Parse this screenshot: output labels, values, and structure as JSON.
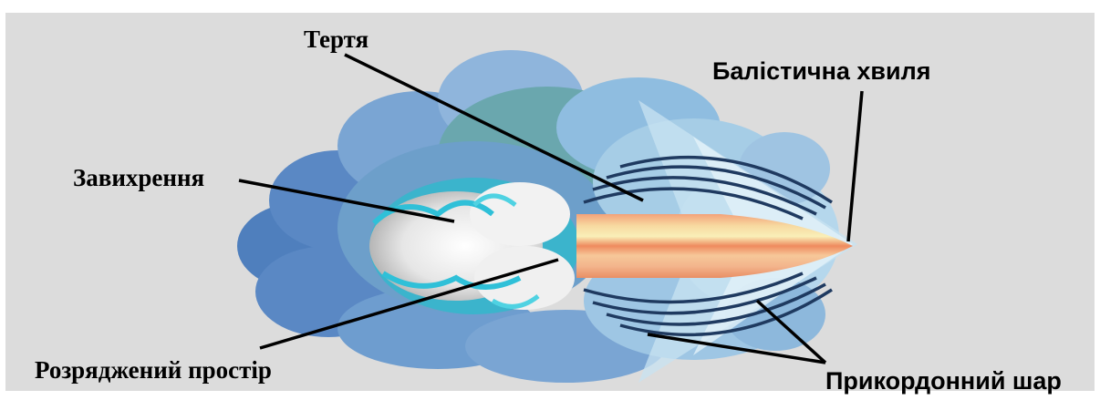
{
  "labels": {
    "friction": "Тертя",
    "ballistic_wave": "Балістична хвиля",
    "turbulence": "Завихрення",
    "rarefied_space": "Розряджений простір",
    "boundary_layer": "Прикордонний шар"
  },
  "colors": {
    "background": "#dcdcdc",
    "cloud_dark_blue": "#4f7fbd",
    "cloud_mid_blue": "#7fa8d4",
    "cloud_teal": "#66aab0",
    "cloud_light_blue": "#a6cde6",
    "wake_cyan": "#33c3d6",
    "wake_grey": "#c9c9c9",
    "bullet_orange": "#ef9a6a",
    "bullet_yellow": "#f7e7a6",
    "flow_lines": "#1f3a60",
    "leader_lines": "#000000"
  }
}
